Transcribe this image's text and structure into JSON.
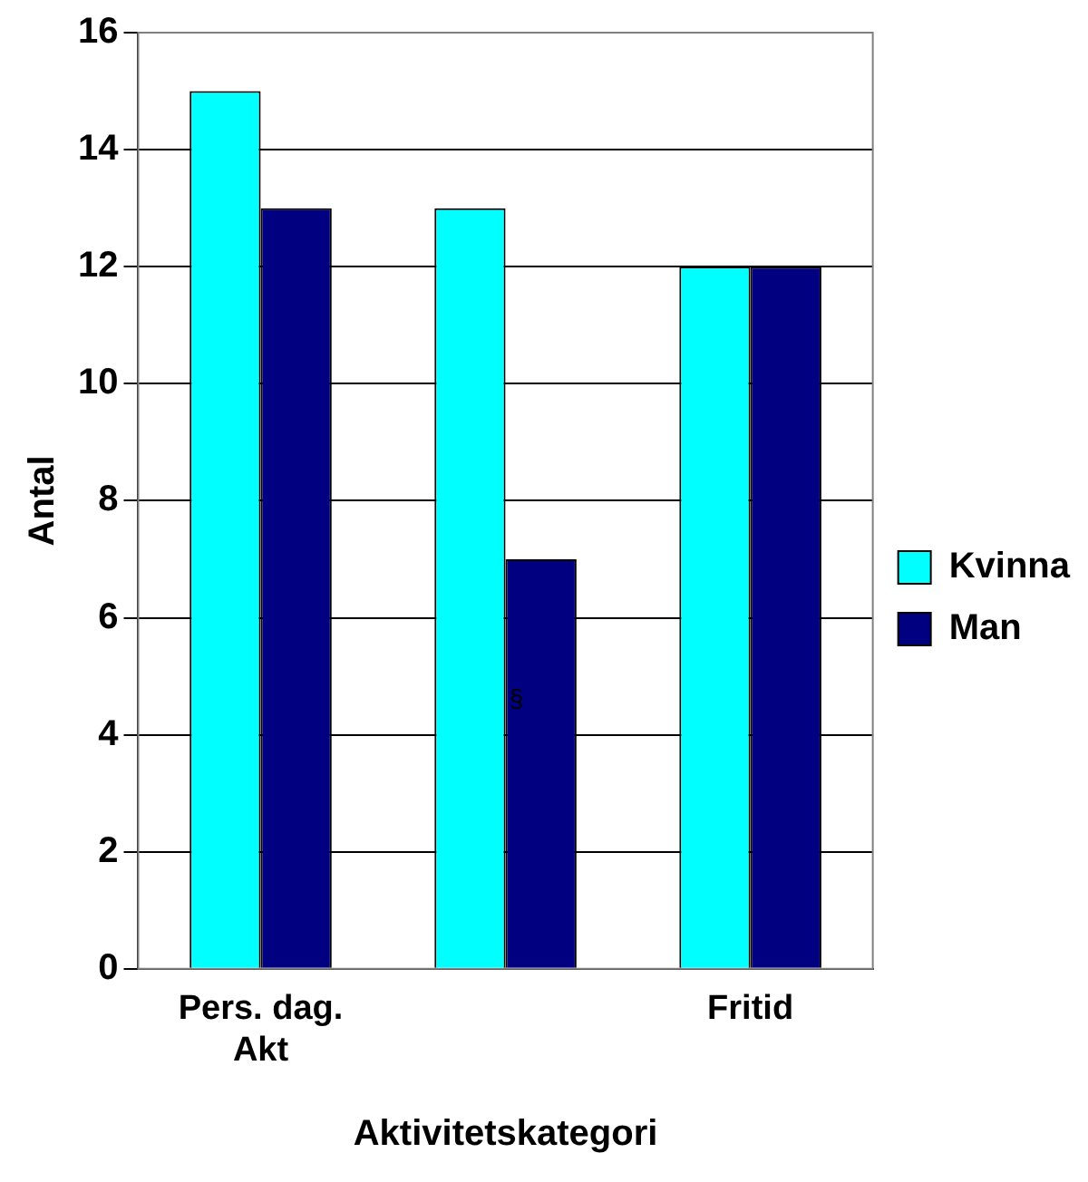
{
  "chart_data": {
    "type": "bar",
    "xlabel": "Aktivitetskategori",
    "ylabel": "Antal",
    "categories": [
      "Pers. dag. Akt",
      null,
      "Fritid"
    ],
    "series": [
      {
        "name": "Kvinna",
        "color": "#00ffff",
        "values": [
          15,
          13,
          12
        ]
      },
      {
        "name": "Man",
        "color": "#000080",
        "values": [
          13,
          7,
          12
        ]
      }
    ],
    "ylim": [
      0,
      16
    ],
    "yticks": [
      0,
      2,
      4,
      6,
      8,
      10,
      12,
      14,
      16
    ],
    "grid": "y",
    "legend": "right",
    "annotations": [
      "§"
    ]
  }
}
